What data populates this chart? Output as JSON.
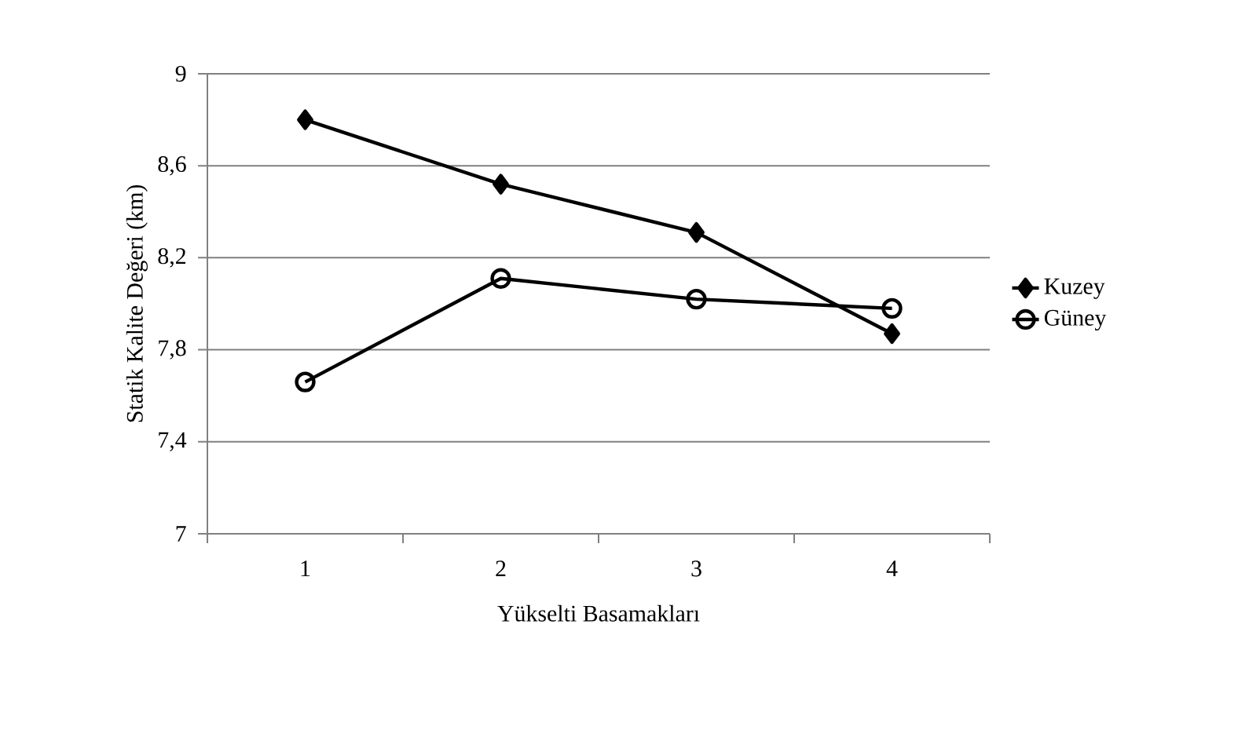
{
  "chart_data": {
    "type": "line",
    "xlabel": "Yükselti Basamakları",
    "ylabel": "Statik Kalite Değeri (km)",
    "categories": [
      "1",
      "2",
      "3",
      "4"
    ],
    "series": [
      {
        "name": "Kuzey",
        "color": "#000000",
        "marker": "diamond",
        "values": [
          8.8,
          8.52,
          8.31,
          7.87
        ]
      },
      {
        "name": "Güney",
        "color": "#000000",
        "marker": "circle",
        "values": [
          7.66,
          8.11,
          8.02,
          7.98
        ]
      }
    ],
    "ylim": [
      7,
      9
    ],
    "yticks": [
      7,
      {
        "value": 7.4,
        "label": "7,4"
      },
      {
        "value": 7.8,
        "label": "7,8"
      },
      {
        "value": 8.2,
        "label": "8,2"
      },
      {
        "value": 8.6,
        "label": "8,6"
      },
      9
    ],
    "grid": "y",
    "legend": "right",
    "line_style": "solid"
  }
}
